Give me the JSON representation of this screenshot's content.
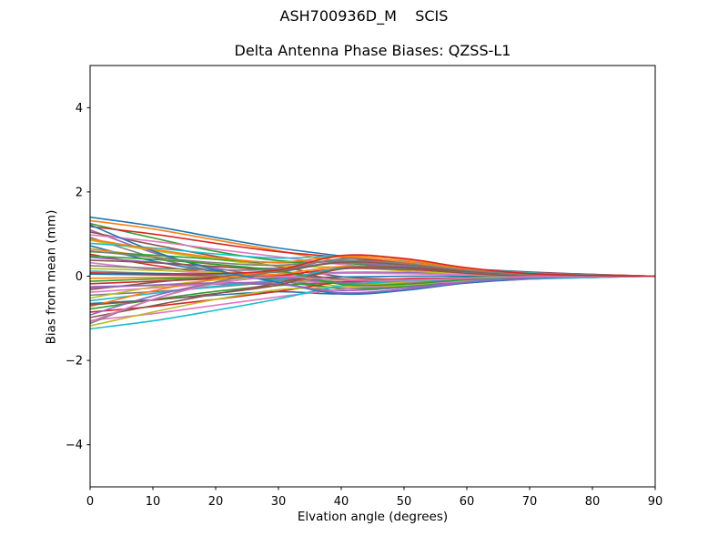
{
  "figure": {
    "suptitle": "ASH700936D_M    SCIS"
  },
  "chart_data": {
    "type": "line",
    "title": "Delta Antenna Phase Biases: QZSS-L1",
    "xlabel": "Elvation angle (degrees)",
    "ylabel": "Bias from mean (mm)",
    "xlim": [
      0,
      90
    ],
    "ylim": [
      -5,
      5
    ],
    "xticks": [
      0,
      10,
      20,
      30,
      40,
      50,
      60,
      70,
      80,
      90
    ],
    "yticks": [
      -4,
      -2,
      0,
      2,
      4
    ],
    "grid": false,
    "legend": "none",
    "frame_color": "#000000",
    "x": [
      0,
      10,
      20,
      30,
      40,
      50,
      60,
      70,
      80,
      90
    ],
    "series": [
      {
        "color": "#1f77b4",
        "y": [
          1.4,
          1.19,
          0.92,
          0.67,
          0.48,
          0.31,
          0.18,
          0.1,
          0.04,
          0.0
        ]
      },
      {
        "color": "#ff7f0e",
        "y": [
          1.32,
          1.12,
          0.86,
          0.6,
          0.35,
          0.21,
          0.13,
          0.08,
          0.04,
          0.0
        ]
      },
      {
        "color": "#2ca02c",
        "y": [
          1.25,
          0.91,
          0.59,
          0.37,
          0.31,
          0.19,
          0.07,
          0.02,
          0.01,
          0.0
        ]
      },
      {
        "color": "#d62728",
        "y": [
          1.18,
          1.0,
          0.78,
          0.58,
          0.45,
          0.3,
          0.17,
          0.09,
          0.04,
          0.0
        ]
      },
      {
        "color": "#9467bd",
        "y": [
          1.1,
          0.56,
          0.19,
          0.01,
          0.09,
          0.09,
          0.05,
          0.01,
          0.01,
          0.0
        ]
      },
      {
        "color": "#8c564b",
        "y": [
          1.05,
          0.75,
          0.47,
          0.23,
          -0.01,
          -0.08,
          -0.05,
          -0.02,
          0.0,
          0.0
        ]
      },
      {
        "color": "#e377c2",
        "y": [
          0.98,
          0.83,
          0.64,
          0.46,
          0.28,
          0.17,
          0.11,
          0.06,
          0.03,
          0.0
        ]
      },
      {
        "color": "#7f7f7f",
        "y": [
          0.92,
          0.45,
          0.12,
          -0.11,
          -0.29,
          -0.23,
          -0.11,
          -0.03,
          -0.01,
          0.0
        ]
      },
      {
        "color": "#bcbd22",
        "y": [
          0.85,
          0.61,
          0.4,
          0.25,
          0.21,
          0.13,
          0.05,
          0.01,
          0.0,
          0.0
        ]
      },
      {
        "color": "#17becf",
        "y": [
          0.78,
          0.67,
          0.53,
          0.43,
          0.47,
          0.34,
          0.18,
          0.08,
          0.03,
          0.0
        ]
      },
      {
        "color": "#1f77b4",
        "y": [
          0.72,
          0.36,
          0.11,
          -0.02,
          -0.02,
          0.0,
          0.0,
          0.0,
          0.0,
          0.0
        ]
      },
      {
        "color": "#ff7f0e",
        "y": [
          0.65,
          0.46,
          0.27,
          0.09,
          -0.17,
          -0.18,
          -0.09,
          -0.03,
          -0.01,
          0.0
        ]
      },
      {
        "color": "#2ca02c",
        "y": [
          0.58,
          0.5,
          0.4,
          0.32,
          0.35,
          0.26,
          0.14,
          0.06,
          0.02,
          0.0
        ]
      },
      {
        "color": "#d62728",
        "y": [
          0.52,
          0.26,
          0.07,
          -0.06,
          -0.15,
          -0.12,
          -0.06,
          -0.02,
          0.0,
          0.0
        ]
      },
      {
        "color": "#9467bd",
        "y": [
          0.45,
          0.33,
          0.23,
          0.19,
          0.31,
          0.23,
          0.1,
          0.03,
          0.01,
          0.0
        ]
      },
      {
        "color": "#8c564b",
        "y": [
          0.38,
          0.32,
          0.23,
          0.12,
          -0.07,
          -0.09,
          -0.03,
          0.0,
          0.01,
          0.0
        ]
      },
      {
        "color": "#e377c2",
        "y": [
          0.32,
          0.16,
          0.06,
          0.01,
          0.07,
          0.06,
          0.03,
          0.0,
          0.0,
          0.0
        ]
      },
      {
        "color": "#7f7f7f",
        "y": [
          0.25,
          0.19,
          0.15,
          0.16,
          0.33,
          0.27,
          0.12,
          0.04,
          0.01,
          0.0
        ]
      },
      {
        "color": "#bcbd22",
        "y": [
          0.18,
          0.14,
          0.09,
          0.0,
          -0.24,
          -0.22,
          -0.1,
          -0.03,
          -0.01,
          0.0
        ]
      },
      {
        "color": "#17becf",
        "y": [
          0.12,
          0.07,
          0.05,
          0.1,
          0.34,
          0.29,
          0.14,
          0.04,
          0.01,
          0.0
        ]
      },
      {
        "color": "#1f77b4",
        "y": [
          0.05,
          0.03,
          0.01,
          -0.03,
          -0.14,
          -0.12,
          -0.06,
          -0.02,
          0.0,
          0.0
        ]
      },
      {
        "color": "#ff7f0e",
        "y": [
          -0.05,
          -0.03,
          -0.01,
          0.05,
          0.23,
          0.2,
          0.09,
          0.03,
          0.01,
          0.0
        ]
      },
      {
        "color": "#2ca02c",
        "y": [
          -0.12,
          -0.07,
          -0.05,
          -0.08,
          -0.29,
          -0.25,
          -0.12,
          -0.04,
          -0.01,
          0.0
        ]
      },
      {
        "color": "#d62728",
        "y": [
          -0.18,
          -0.12,
          -0.06,
          0.01,
          0.18,
          0.16,
          0.08,
          0.02,
          0.01,
          0.0
        ]
      },
      {
        "color": "#9467bd",
        "y": [
          -0.25,
          -0.22,
          -0.19,
          -0.2,
          -0.34,
          -0.27,
          -0.13,
          -0.03,
          -0.01,
          0.0
        ]
      },
      {
        "color": "#8c564b",
        "y": [
          -0.32,
          -0.15,
          -0.02,
          0.11,
          0.33,
          0.28,
          0.13,
          0.04,
          0.01,
          0.0
        ]
      },
      {
        "color": "#e377c2",
        "y": [
          -0.38,
          -0.28,
          -0.18,
          -0.13,
          -0.15,
          -0.1,
          -0.04,
          -0.01,
          0.0,
          0.0
        ]
      },
      {
        "color": "#7f7f7f",
        "y": [
          -0.45,
          -0.37,
          -0.26,
          -0.11,
          0.2,
          0.2,
          0.08,
          0.01,
          0.0,
          0.0
        ]
      },
      {
        "color": "#bcbd22",
        "y": [
          -0.52,
          -0.26,
          -0.09,
          -0.02,
          -0.1,
          -0.09,
          -0.04,
          -0.01,
          0.0,
          0.0
        ]
      },
      {
        "color": "#17becf",
        "y": [
          -0.58,
          -0.41,
          -0.24,
          -0.08,
          0.18,
          0.18,
          0.09,
          0.03,
          0.01,
          0.0
        ]
      },
      {
        "color": "#1f77b4",
        "y": [
          -0.65,
          -0.56,
          -0.45,
          -0.37,
          -0.42,
          -0.31,
          -0.16,
          -0.07,
          -0.03,
          0.0
        ]
      },
      {
        "color": "#ff7f0e",
        "y": [
          -0.72,
          -0.35,
          -0.07,
          0.16,
          0.47,
          0.39,
          0.18,
          0.06,
          0.01,
          0.0
        ]
      },
      {
        "color": "#2ca02c",
        "y": [
          -0.78,
          -0.56,
          -0.36,
          -0.22,
          -0.15,
          -0.08,
          -0.03,
          -0.01,
          0.0,
          0.0
        ]
      },
      {
        "color": "#d62728",
        "y": [
          -0.85,
          -0.72,
          -0.55,
          -0.36,
          -0.14,
          -0.06,
          -0.05,
          -0.04,
          -0.02,
          0.0
        ]
      },
      {
        "color": "#9467bd",
        "y": [
          -0.92,
          -0.47,
          -0.16,
          -0.03,
          -0.16,
          -0.15,
          -0.07,
          -0.02,
          -0.01,
          0.0
        ]
      },
      {
        "color": "#8c564b",
        "y": [
          -0.98,
          -0.7,
          -0.42,
          -0.16,
          0.17,
          0.21,
          0.11,
          0.04,
          0.01,
          0.0
        ]
      },
      {
        "color": "#e377c2",
        "y": [
          -1.05,
          -0.89,
          -0.69,
          -0.49,
          -0.31,
          -0.19,
          -0.12,
          -0.07,
          -0.03,
          0.0
        ]
      },
      {
        "color": "#7f7f7f",
        "y": [
          -1.12,
          -0.55,
          -0.14,
          0.12,
          0.41,
          0.35,
          0.15,
          0.05,
          0.01,
          0.0
        ]
      },
      {
        "color": "#bcbd22",
        "y": [
          -1.18,
          -0.85,
          -0.55,
          -0.32,
          -0.25,
          -0.14,
          -0.05,
          -0.01,
          0.0,
          0.0
        ]
      },
      {
        "color": "#17becf",
        "y": [
          -1.25,
          -1.06,
          -0.81,
          -0.54,
          -0.23,
          -0.11,
          -0.08,
          -0.06,
          -0.03,
          0.0
        ]
      },
      {
        "color": "#1f77b4",
        "y": [
          1.22,
          0.6,
          0.15,
          -0.15,
          -0.42,
          -0.34,
          -0.16,
          -0.05,
          -0.01,
          0.0
        ]
      },
      {
        "color": "#ff7f0e",
        "y": [
          0.88,
          0.64,
          0.44,
          0.33,
          0.46,
          0.34,
          0.15,
          0.04,
          0.01,
          0.0
        ]
      },
      {
        "color": "#2ca02c",
        "y": [
          0.48,
          0.4,
          0.28,
          0.13,
          -0.19,
          -0.19,
          -0.08,
          -0.01,
          0.0,
          0.0
        ]
      },
      {
        "color": "#9467bd",
        "y": [
          -0.28,
          -0.21,
          -0.16,
          -0.18,
          -0.39,
          -0.31,
          -0.14,
          -0.04,
          -0.01,
          0.0
        ]
      },
      {
        "color": "#8c564b",
        "y": [
          -0.68,
          -0.57,
          -0.41,
          -0.21,
          0.17,
          0.19,
          0.07,
          0.0,
          -0.01,
          0.0
        ]
      },
      {
        "color": "#e377c2",
        "y": [
          -1.08,
          -0.55,
          -0.18,
          -0.01,
          -0.09,
          -0.09,
          -0.05,
          -0.01,
          -0.01,
          0.0
        ]
      },
      {
        "color": "#7f7f7f",
        "y": [
          0.6,
          0.45,
          0.32,
          0.26,
          0.38,
          0.3,
          0.14,
          0.04,
          0.01,
          0.0
        ]
      },
      {
        "color": "#d62728",
        "y": [
          0.08,
          0.06,
          0.06,
          0.15,
          0.49,
          0.42,
          0.2,
          0.06,
          0.02,
          0.0
        ]
      }
    ]
  }
}
